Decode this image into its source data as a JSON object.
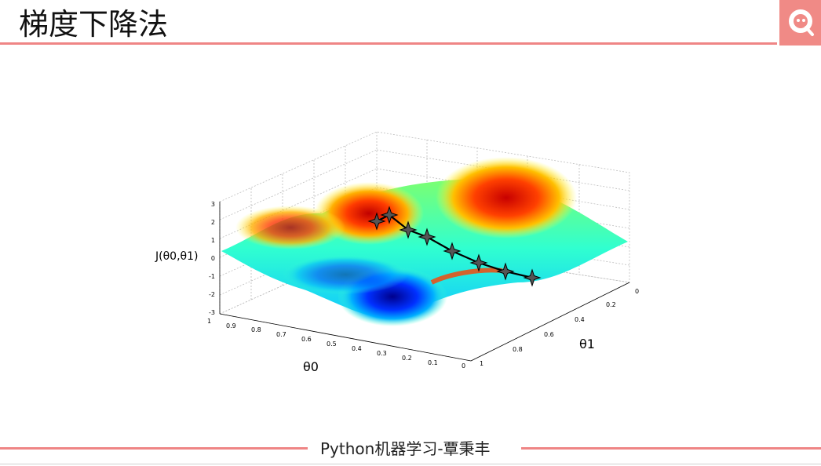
{
  "slide": {
    "title": "梯度下降法",
    "footer": "Python机器学习-覃秉丰"
  },
  "figure": {
    "z_label": "J(θ0,θ1)",
    "x_label": "θ0",
    "y_label": "θ1",
    "z_ticks": [
      "3",
      "2",
      "1",
      "0",
      "-1",
      "-2",
      "-3"
    ],
    "x_ticks": [
      "1",
      "0.9",
      "0.8",
      "0.7",
      "0.6",
      "0.5",
      "0.4",
      "0.3",
      "0.2",
      "0.1",
      "0"
    ],
    "y_ticks": [
      "0",
      "0.2",
      "0.4",
      "0.6",
      "0.8",
      "1"
    ],
    "path_points": 8
  }
}
